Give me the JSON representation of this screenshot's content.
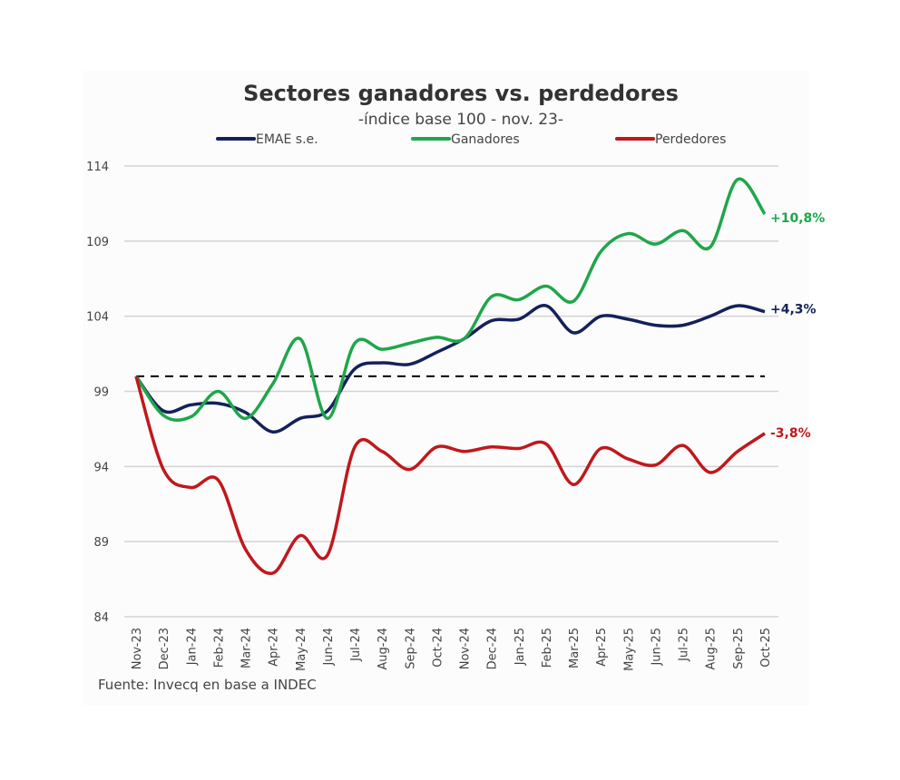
{
  "chart_data": {
    "type": "line",
    "title": "Sectores ganadores vs. perdedores",
    "subtitle": "-índice base 100 - nov. 23-",
    "source": "Fuente: Invecq en base a INDEC",
    "xlabel": "",
    "ylabel": "",
    "ylim": [
      84,
      114
    ],
    "yticks": [
      84,
      89,
      94,
      99,
      104,
      109,
      114
    ],
    "grid": true,
    "legend_position": "top",
    "reference_line": {
      "value": 100,
      "style": "dashed",
      "color": "#000000"
    },
    "categories": [
      "Nov-23",
      "Dec-23",
      "Jan-24",
      "Feb-24",
      "Mar-24",
      "Apr-24",
      "May-24",
      "Jun-24",
      "Jul-24",
      "Aug-24",
      "Sep-24",
      "Oct-24",
      "Nov-24",
      "Dec-24",
      "Jan-25",
      "Feb-25",
      "Mar-25",
      "Apr-25",
      "May-25",
      "Jun-25",
      "Jul-25",
      "Aug-25",
      "Sep-25",
      "Oct-25"
    ],
    "series": [
      {
        "name": "EMAE s.e.",
        "color": "#14215a",
        "end_label": "+4,3%",
        "values": [
          100,
          97.7,
          98.1,
          98.2,
          97.6,
          96.3,
          97.2,
          97.7,
          100.5,
          100.9,
          100.8,
          101.6,
          102.5,
          103.7,
          103.8,
          104.7,
          102.9,
          104.0,
          103.8,
          103.4,
          103.4,
          104.0,
          104.7,
          104.3
        ]
      },
      {
        "name": "Ganadores",
        "color": "#1fa64a",
        "end_label": "+10,8%",
        "values": [
          100,
          97.4,
          97.3,
          99.0,
          97.2,
          99.5,
          102.5,
          97.2,
          102.2,
          101.8,
          102.2,
          102.6,
          102.5,
          105.3,
          105.1,
          106.0,
          105.0,
          108.3,
          109.5,
          108.8,
          109.7,
          108.6,
          113.1,
          110.8
        ]
      },
      {
        "name": "Perdedores",
        "color": "#c0181c",
        "end_label": "-3,8%",
        "values": [
          100,
          93.8,
          92.6,
          93.1,
          88.5,
          86.9,
          89.4,
          88.1,
          95.3,
          95.0,
          93.8,
          95.3,
          95.0,
          95.3,
          95.2,
          95.5,
          92.8,
          95.2,
          94.5,
          94.1,
          95.4,
          93.6,
          95.0,
          96.2
        ]
      }
    ]
  }
}
